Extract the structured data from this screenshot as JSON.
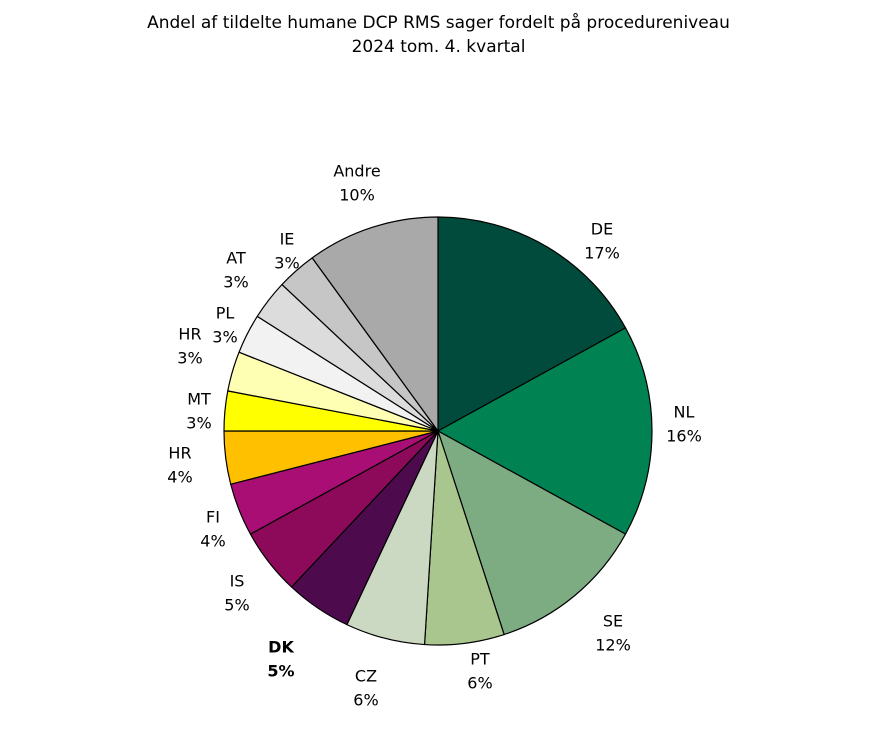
{
  "title": {
    "line1": "Andel af tildelte humane DCP RMS sager fordelt på procedureniveau",
    "line2": "2024 tom. 4. kvartal"
  },
  "chart_data": {
    "type": "pie",
    "title": "Andel af tildelte humane DCP RMS sager fordelt på procedureniveau 2024 tom. 4. kvartal",
    "start_angle_deg": 0,
    "direction": "clockwise",
    "total": 100,
    "outline_color": "#000000",
    "background": "#FFFFFF",
    "legend": "none",
    "slices": [
      {
        "label": "DE",
        "value": 17,
        "pct": "17%",
        "color": "#004B3C",
        "bold": false
      },
      {
        "label": "NL",
        "value": 16,
        "pct": "16%",
        "color": "#008253",
        "bold": false
      },
      {
        "label": "SE",
        "value": 12,
        "pct": "12%",
        "color": "#7EAC82",
        "bold": false
      },
      {
        "label": "PT",
        "value": 6,
        "pct": "6%",
        "color": "#A9C68F",
        "bold": false
      },
      {
        "label": "CZ",
        "value": 6,
        "pct": "6%",
        "color": "#CCD9C2",
        "bold": false
      },
      {
        "label": "DK",
        "value": 5,
        "pct": "5%",
        "color": "#4D0A4D",
        "bold": true
      },
      {
        "label": "IS",
        "value": 5,
        "pct": "5%",
        "color": "#8D0A5A",
        "bold": false
      },
      {
        "label": "FI",
        "value": 4,
        "pct": "4%",
        "color": "#A80E73",
        "bold": false
      },
      {
        "label": "HR",
        "value": 4,
        "pct": "4%",
        "color": "#FFC000",
        "bold": false
      },
      {
        "label": "MT",
        "value": 3,
        "pct": "3%",
        "color": "#FFFF00",
        "bold": false
      },
      {
        "label": "HR",
        "value": 3,
        "pct": "3%",
        "color": "#FFFFB3",
        "bold": false
      },
      {
        "label": "PL",
        "value": 3,
        "pct": "3%",
        "color": "#F2F2F2",
        "bold": false
      },
      {
        "label": "AT",
        "value": 3,
        "pct": "3%",
        "color": "#DCDCDC",
        "bold": false
      },
      {
        "label": "IE",
        "value": 3,
        "pct": "3%",
        "color": "#C6C6C6",
        "bold": false
      },
      {
        "label": "Andre",
        "value": 10,
        "pct": "10%",
        "color": "#A9A9A9",
        "bold": false
      }
    ]
  }
}
